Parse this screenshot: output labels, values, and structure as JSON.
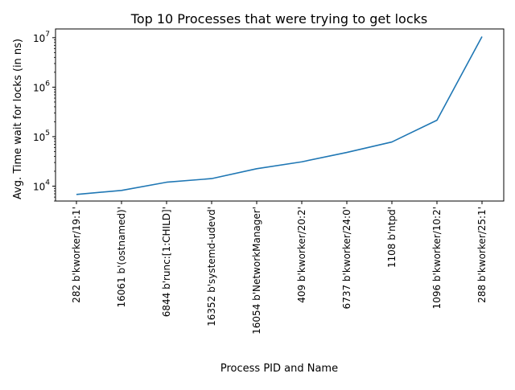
{
  "chart_data": {
    "type": "line",
    "title": "Top 10 Processes that were trying to get locks",
    "xlabel": "Process PID and Name",
    "ylabel": "Avg. Time wait for locks (in ns)",
    "yscale": "log",
    "ylim": [
      5000,
      15000000
    ],
    "y_ticks": [
      {
        "base": "10",
        "exp": "4"
      },
      {
        "base": "10",
        "exp": "5"
      },
      {
        "base": "10",
        "exp": "6"
      },
      {
        "base": "10",
        "exp": "7"
      }
    ],
    "categories": [
      "282 b'kworker/19:1'",
      "16061 b'(ostnamed)'",
      "6844 b'runc:[1:CHILD]'",
      "16352 b'systemd-udevd'",
      "16054 b'NetworkManager'",
      "409 b'kworker/20:2'",
      "6737 b'kworker/24:0'",
      "1108 b'ntpd'",
      "1096 b'kworker/10:2'",
      "288 b'kworker/25:1'"
    ],
    "series": [
      {
        "color": "#1f77b4",
        "values": [
          6800,
          8200,
          12000,
          14200,
          22500,
          31000,
          48000,
          78000,
          215000,
          10500000
        ]
      }
    ],
    "grid": false,
    "legend": "none"
  }
}
